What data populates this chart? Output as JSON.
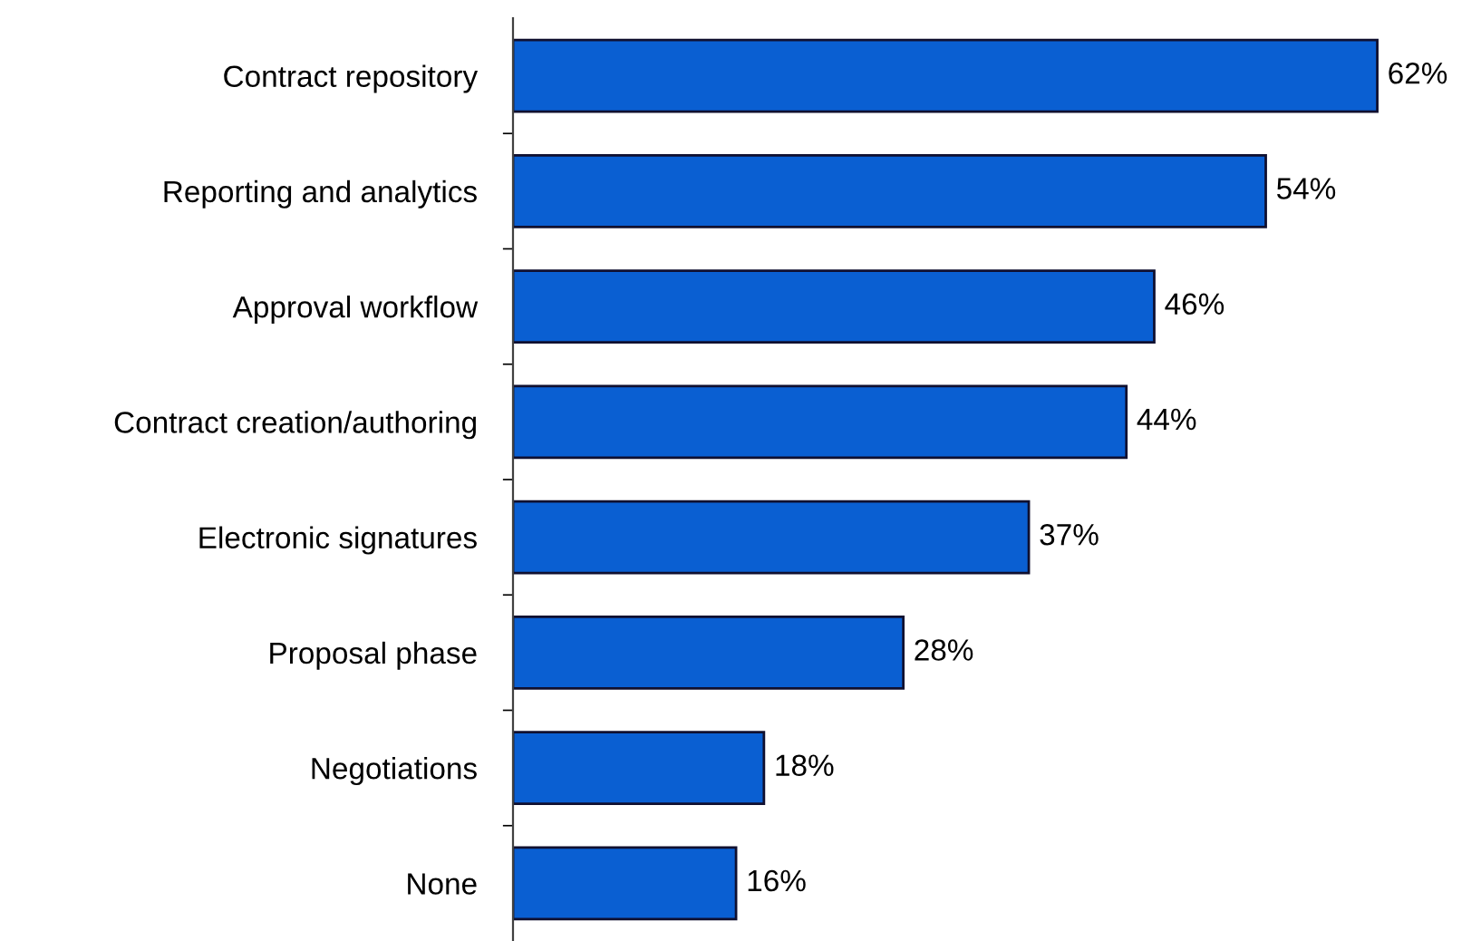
{
  "chart_data": {
    "type": "bar",
    "orientation": "horizontal",
    "categories": [
      "Contract repository",
      "Reporting and analytics",
      "Approval workflow",
      "Contract creation/authoring",
      "Electronic signatures",
      "Proposal phase",
      "Negotiations",
      "None"
    ],
    "values": [
      62,
      54,
      46,
      44,
      37,
      28,
      18,
      16
    ],
    "value_labels": [
      "62%",
      "54%",
      "46%",
      "44%",
      "37%",
      "28%",
      "18%",
      "16%"
    ],
    "color": "#0a5fd2"
  }
}
